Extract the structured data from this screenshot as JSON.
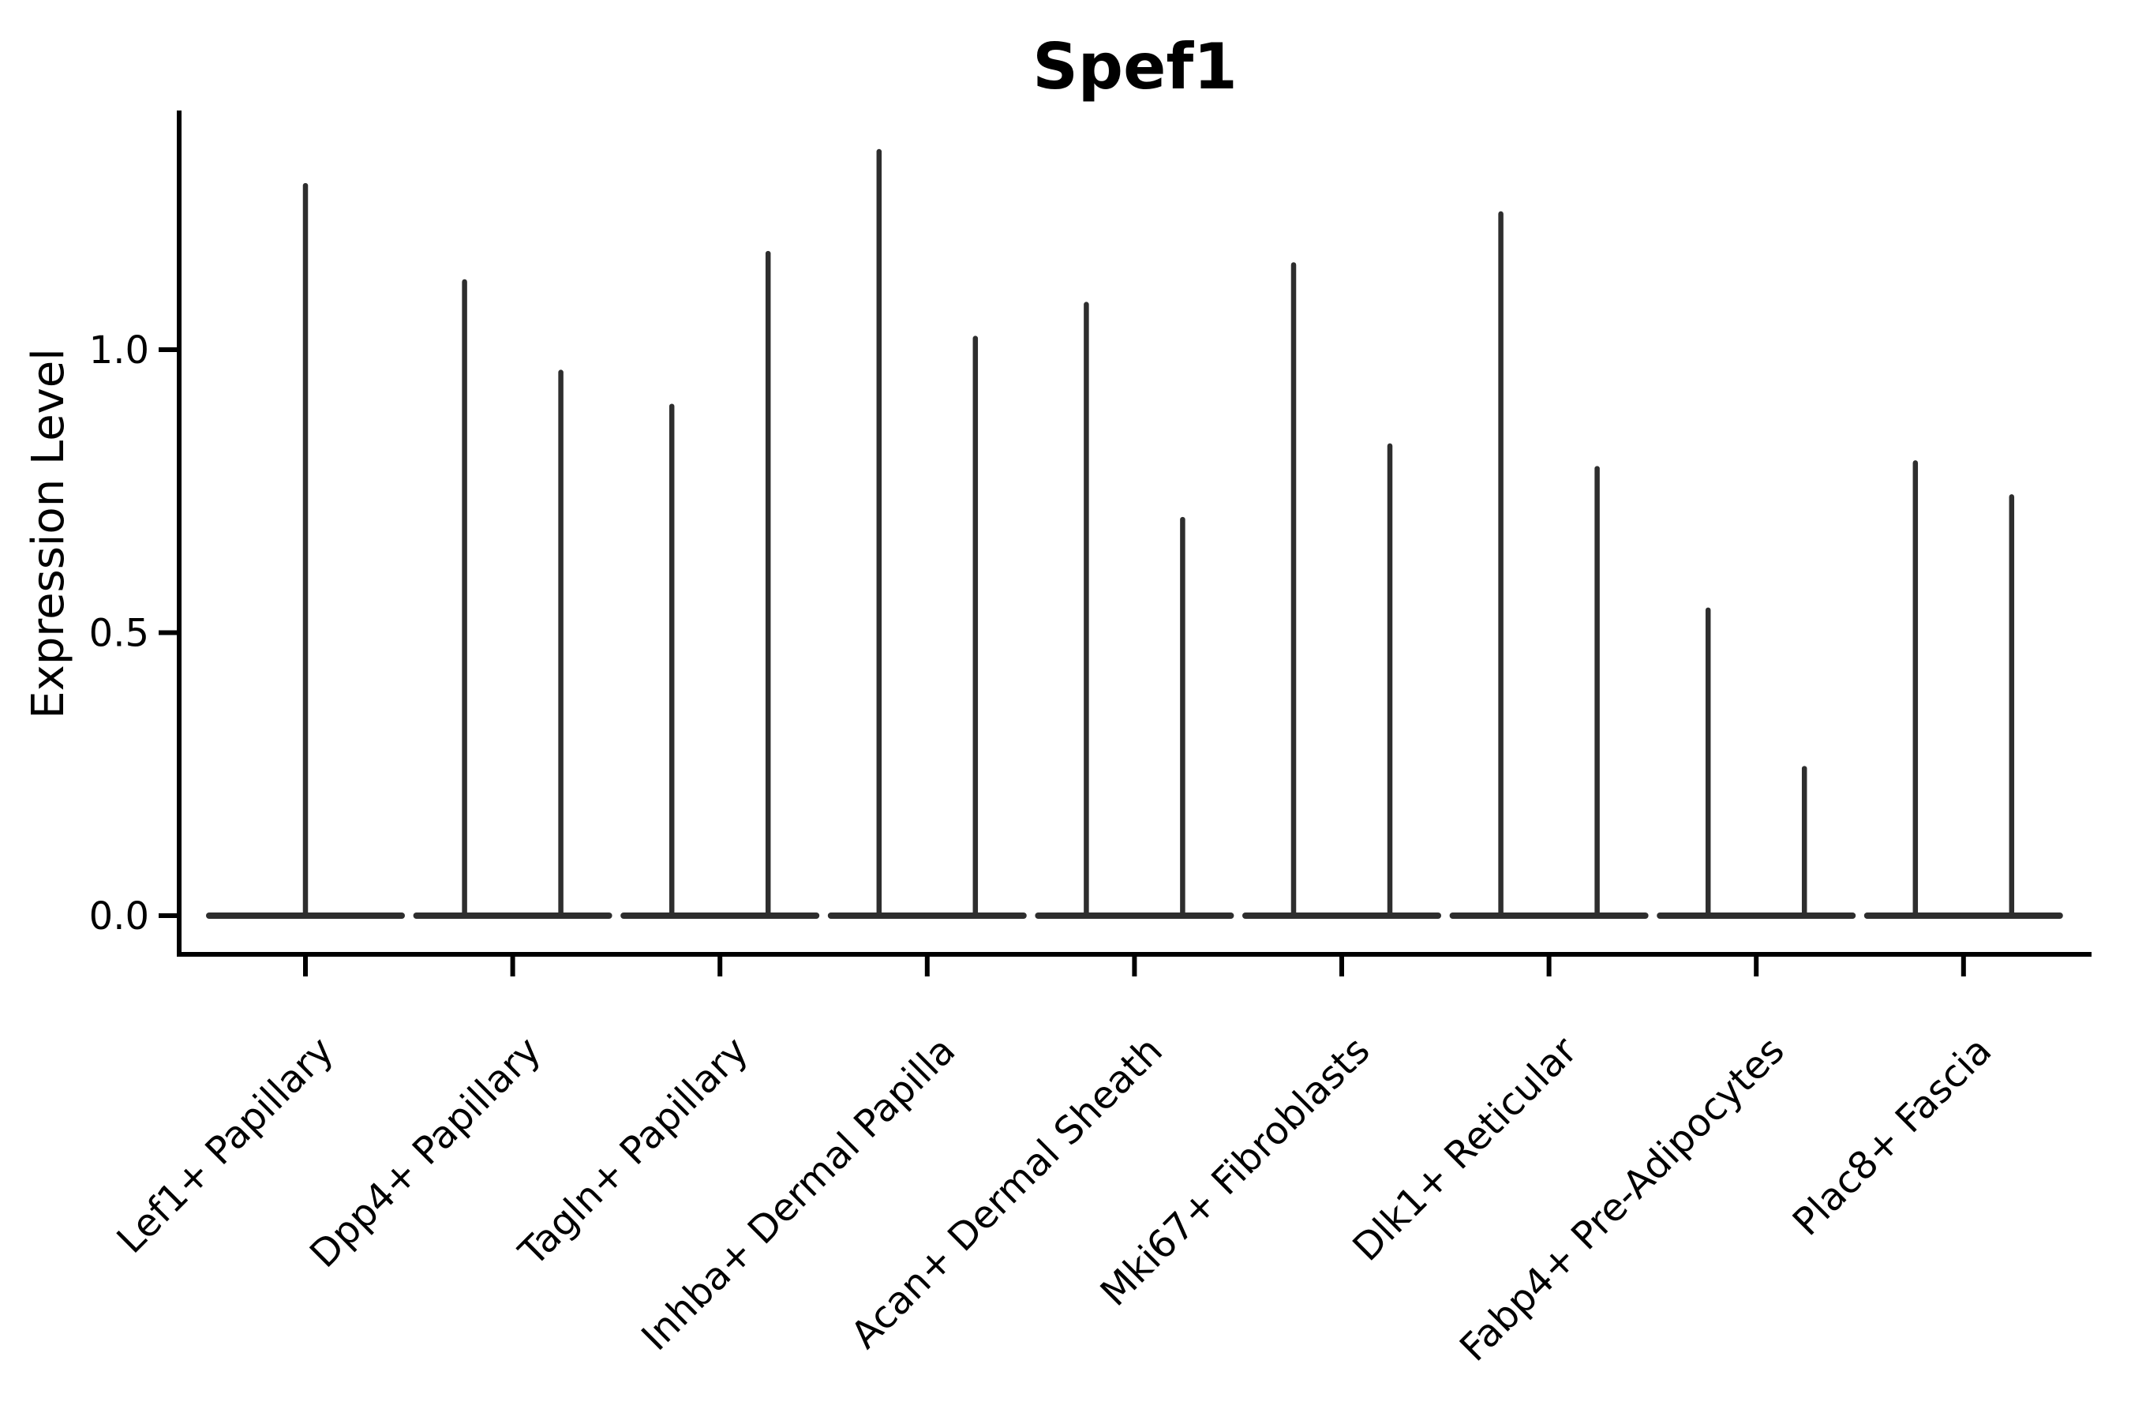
{
  "title": "Spef1",
  "y_axis": {
    "label": "Expression Level",
    "ticks": [
      "0.0",
      "0.5",
      "1.0"
    ],
    "tick_values": [
      0.0,
      0.5,
      1.0
    ]
  },
  "colors": {
    "violin": "#2e2e2e",
    "axis": "#000000",
    "text": "#000000",
    "background": "#ffffff"
  },
  "chart_data": {
    "type": "violin",
    "title": "Spef1",
    "ylabel": "Expression Level",
    "xlabel": "",
    "ylim": [
      -0.07,
      1.42
    ],
    "yticks": [
      0.0,
      0.5,
      1.0
    ],
    "grid": false,
    "legend": "none",
    "categories": [
      "Lef1+ Papillary",
      "Dpp4+ Papillary",
      "Tagln+ Papillary",
      "Inhba+ Dermal Papilla",
      "Acan+ Dermal Sheath",
      "Mki67+ Fibroblasts",
      "Dlk1+ Reticular",
      "Fabp4+ Pre-Adipocytes",
      "Plac8+ Fascia"
    ],
    "series": [
      {
        "category": "Lef1+ Papillary",
        "violin_max_values": [
          1.29
        ]
      },
      {
        "category": "Dpp4+ Papillary",
        "violin_max_values": [
          1.12,
          0.96
        ]
      },
      {
        "category": "Tagln+ Papillary",
        "violin_max_values": [
          0.9,
          1.17
        ]
      },
      {
        "category": "Inhba+ Dermal Papilla",
        "violin_max_values": [
          1.35,
          1.02
        ]
      },
      {
        "category": "Acan+ Dermal Sheath",
        "violin_max_values": [
          1.08,
          0.7
        ]
      },
      {
        "category": "Mki67+ Fibroblasts",
        "violin_max_values": [
          1.15,
          0.83
        ]
      },
      {
        "category": "Dlk1+ Reticular",
        "violin_max_values": [
          1.24,
          0.79
        ]
      },
      {
        "category": "Fabp4+ Pre-Adipocytes",
        "violin_max_values": [
          0.54,
          0.26
        ]
      },
      {
        "category": "Plac8+ Fascia",
        "violin_max_values": [
          0.8,
          0.74
        ]
      }
    ],
    "value_concentration": "mass at 0 with thin spike to max"
  }
}
